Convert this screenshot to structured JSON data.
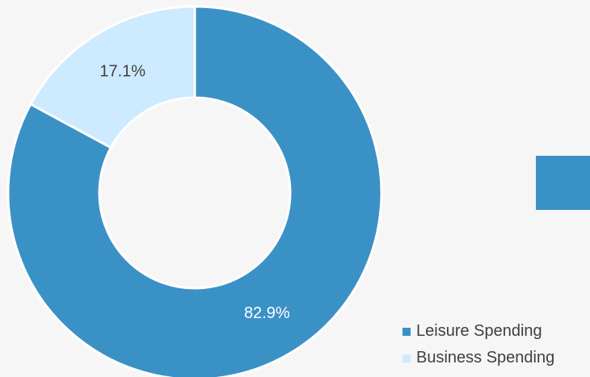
{
  "chart_data": {
    "type": "pie",
    "donut": true,
    "categories": [
      "Leisure Spending",
      "Business Spending"
    ],
    "values": [
      82.9,
      17.1
    ],
    "data_labels": [
      "82.9%",
      "17.1%"
    ],
    "colors": [
      "#3a91c6",
      "#cdeaff"
    ],
    "label_colors": [
      "#ffffff",
      "#404040"
    ],
    "legend_position": "bottom-right"
  },
  "decor": {
    "side_block_color": "#3a91c6"
  }
}
